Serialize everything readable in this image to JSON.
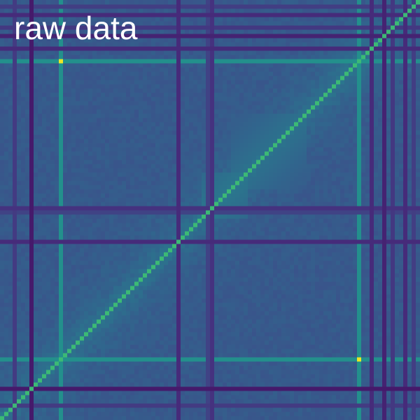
{
  "chart_data": {
    "type": "heatmap",
    "title": "raw data",
    "matrix_size": 100,
    "colormap": "viridis",
    "color_stops": [
      "#440154",
      "#46307e",
      "#3c4f8a",
      "#30678d",
      "#26828e",
      "#1f9e89",
      "#35b779",
      "#6ece58",
      "#b5de2b",
      "#fde725"
    ],
    "value_range": [
      0,
      1
    ],
    "background_level": 0.27,
    "diagonal_level": 0.68,
    "peak": {
      "row": 85,
      "col": 14,
      "value": 0.98
    },
    "low_coverage_bins": [
      {
        "index": 7,
        "value": 0.06
      },
      {
        "index": 42,
        "value": 0.1
      },
      {
        "index": 50,
        "value": 0.12
      },
      {
        "index": 49,
        "value": 0.18
      },
      {
        "index": 91,
        "value": 0.08
      },
      {
        "index": 96,
        "value": 0.1
      },
      {
        "index": 93,
        "value": 0.14
      },
      {
        "index": 98,
        "value": 0.16
      },
      {
        "index": 3,
        "value": 0.15
      },
      {
        "index": 88,
        "value": 0.1
      }
    ],
    "high_coverage_bins": [
      {
        "index": 14,
        "value": 0.5
      },
      {
        "index": 85,
        "value": 0.5
      }
    ],
    "enriched_blocks": [
      {
        "start": 48,
        "end": 58,
        "value": 0.4
      },
      {
        "start": 55,
        "end": 72,
        "value": 0.38
      },
      {
        "start": 78,
        "end": 90,
        "value": 0.36
      }
    ]
  }
}
